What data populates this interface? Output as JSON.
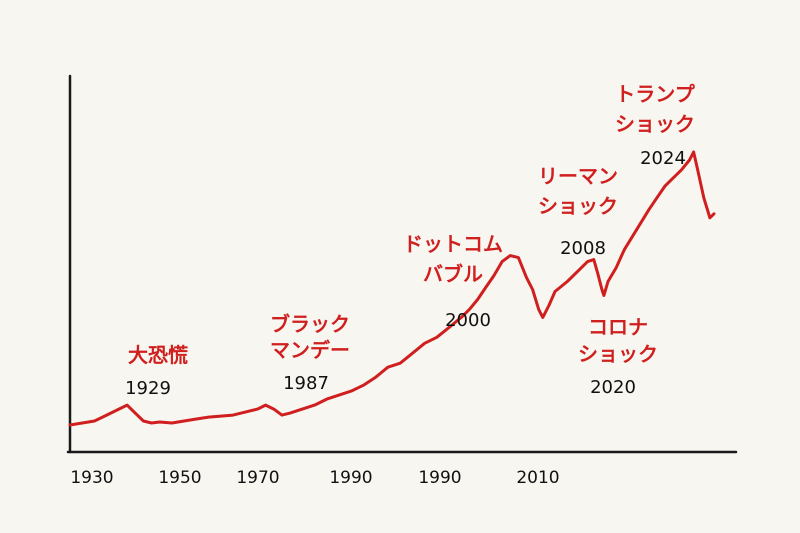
{
  "chart_data": {
    "type": "line",
    "title": "",
    "xlabel": "",
    "ylabel": "",
    "grid": false,
    "x_tick_labels": [
      "1930",
      "1950",
      "1970",
      "1990",
      "1990",
      "2010"
    ],
    "series": [
      {
        "color": "#d01f1f",
        "points": [
          [
            0,
            4
          ],
          [
            3,
            5
          ],
          [
            6,
            6
          ],
          [
            9,
            9
          ],
          [
            12,
            12
          ],
          [
            14,
            14
          ],
          [
            16,
            10
          ],
          [
            18,
            6
          ],
          [
            20,
            5
          ],
          [
            22,
            5.5
          ],
          [
            25,
            5
          ],
          [
            28,
            6
          ],
          [
            31,
            7
          ],
          [
            34,
            8
          ],
          [
            37,
            8.5
          ],
          [
            40,
            9
          ],
          [
            43,
            10.5
          ],
          [
            46,
            12
          ],
          [
            48,
            14
          ],
          [
            50,
            12
          ],
          [
            52,
            9
          ],
          [
            54,
            10
          ],
          [
            57,
            12
          ],
          [
            60,
            14
          ],
          [
            63,
            17
          ],
          [
            66,
            19
          ],
          [
            69,
            21
          ],
          [
            72,
            24
          ],
          [
            75,
            28
          ],
          [
            78,
            33
          ],
          [
            81,
            35
          ],
          [
            84,
            40
          ],
          [
            87,
            45
          ],
          [
            90,
            48
          ],
          [
            93,
            53
          ],
          [
            96,
            58
          ],
          [
            98,
            62
          ],
          [
            100,
            67
          ],
          [
            102,
            73
          ],
          [
            104,
            79
          ],
          [
            106,
            86
          ],
          [
            108,
            89
          ],
          [
            110,
            88
          ],
          [
            112,
            78
          ],
          [
            113.5,
            72
          ],
          [
            115,
            62
          ],
          [
            116,
            58
          ],
          [
            117.5,
            64
          ],
          [
            119,
            71
          ],
          [
            122,
            76
          ],
          [
            125,
            82
          ],
          [
            127,
            86
          ],
          [
            128.5,
            87
          ],
          [
            129.5,
            80
          ],
          [
            130.5,
            72
          ],
          [
            131,
            69
          ],
          [
            132,
            76
          ],
          [
            134,
            83
          ],
          [
            136,
            92
          ],
          [
            139,
            102
          ],
          [
            142,
            112
          ],
          [
            144,
            118
          ],
          [
            146,
            124
          ],
          [
            148,
            128
          ],
          [
            150,
            132
          ],
          [
            152,
            137
          ],
          [
            153,
            141
          ],
          [
            154,
            132
          ],
          [
            155.5,
            118
          ],
          [
            157,
            108
          ],
          [
            158,
            110
          ]
        ]
      }
    ],
    "annotations": [
      {
        "label_lines": [
          "大恐慌"
        ],
        "year": "1929"
      },
      {
        "label_lines": [
          "ブラック",
          "マンデー"
        ],
        "year": "1987"
      },
      {
        "label_lines": [
          "ドットコム",
          "バブル"
        ],
        "year": "2000"
      },
      {
        "label_lines": [
          "リーマン",
          "ショック"
        ],
        "year": "2008"
      },
      {
        "label_lines": [
          "コロナ",
          "ショック"
        ],
        "year": "2020"
      },
      {
        "label_lines": [
          "トランプ",
          "ショック"
        ],
        "year": "2024"
      }
    ]
  }
}
